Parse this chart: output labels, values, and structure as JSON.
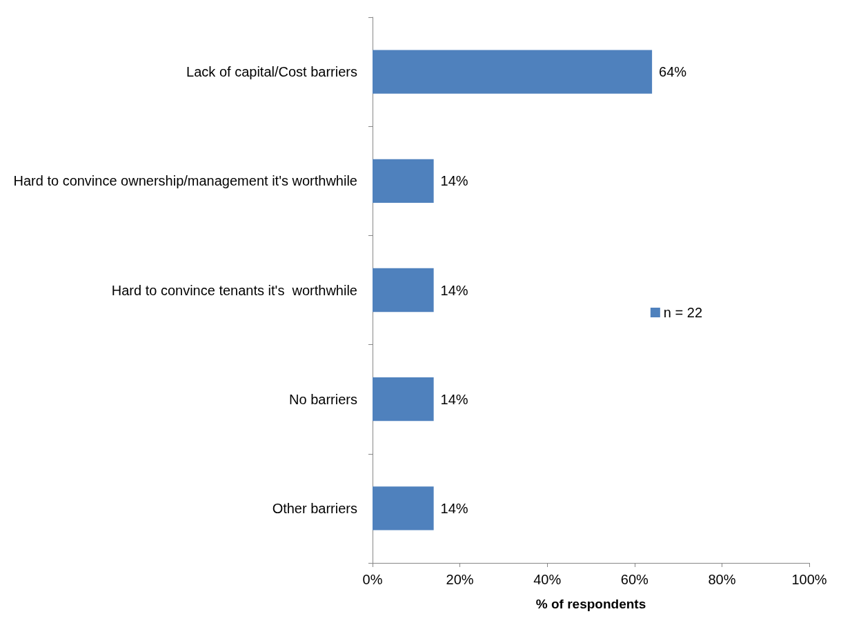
{
  "chart_data": {
    "type": "bar",
    "orientation": "horizontal",
    "xlabel": "% of respondents",
    "categories": [
      "Lack of capital/Cost barriers",
      "Hard to convince ownership/management it's worthwhile",
      "Hard to convince tenants it's  worthwhile",
      "No barriers",
      "Other barriers"
    ],
    "series": [
      {
        "name": "n = 22",
        "color": "#4f81bd",
        "values": [
          64,
          14,
          14,
          14,
          14
        ],
        "value_labels": [
          "64%",
          "14%",
          "14%",
          "14%",
          "14%"
        ]
      }
    ],
    "xlim": [
      0,
      100
    ],
    "xticks": [
      {
        "value": 0,
        "label": "0%"
      },
      {
        "value": 20,
        "label": "20%"
      },
      {
        "value": 40,
        "label": "40%"
      },
      {
        "value": 60,
        "label": "60%"
      },
      {
        "value": 80,
        "label": "80%"
      },
      {
        "value": 100,
        "label": "100%"
      }
    ],
    "grid": false,
    "legend": "right"
  }
}
